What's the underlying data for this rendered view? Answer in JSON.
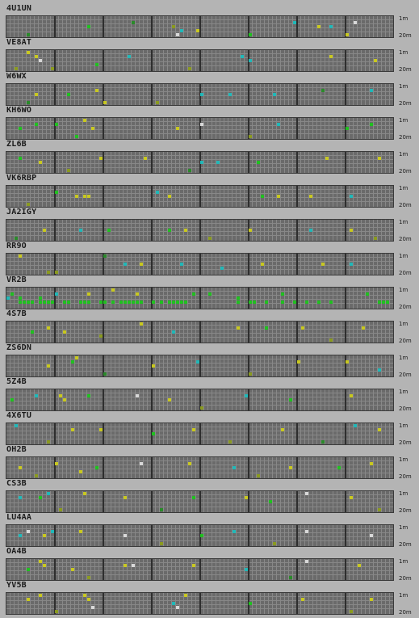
{
  "band_labels": {
    "top": "1m",
    "bottom": "20m"
  },
  "colors": {
    "green": "#20c020",
    "yellow": "#c8c820",
    "cyan": "#20b8b8",
    "white": "#d8d8d8",
    "darkgreen": "#2a8a2a",
    "olive": "#8a9a20"
  },
  "stations": [
    {
      "callsign": "4U1UN",
      "spots": [
        [
          41,
          2,
          "olive"
        ],
        [
          60,
          4,
          "green"
        ],
        [
          80,
          2,
          "cyan"
        ],
        [
          84,
          4,
          "yellow"
        ],
        [
          86,
          1,
          "white"
        ],
        [
          43,
          3,
          "cyan"
        ],
        [
          77,
          2,
          "yellow"
        ],
        [
          5,
          4,
          "darkgreen"
        ],
        [
          20,
          2,
          "green"
        ],
        [
          31,
          1,
          "darkgreen"
        ],
        [
          42,
          4,
          "white"
        ],
        [
          47,
          3,
          "yellow"
        ],
        [
          71,
          1,
          "cyan"
        ]
      ]
    },
    {
      "callsign": "VE8AT",
      "spots": [
        [
          5,
          0,
          "yellow"
        ],
        [
          7,
          1,
          "yellow"
        ],
        [
          30,
          1,
          "cyan"
        ],
        [
          58,
          1,
          "cyan"
        ],
        [
          60,
          2,
          "cyan"
        ],
        [
          80,
          1,
          "yellow"
        ],
        [
          91,
          2,
          "yellow"
        ],
        [
          2,
          4,
          "olive"
        ],
        [
          11,
          4,
          "olive"
        ],
        [
          22,
          3,
          "green"
        ],
        [
          8,
          2,
          "white"
        ],
        [
          45,
          4,
          "olive"
        ]
      ]
    },
    {
      "callsign": "W6WX",
      "spots": [
        [
          7,
          2,
          "yellow"
        ],
        [
          22,
          1,
          "yellow"
        ],
        [
          24,
          4,
          "yellow"
        ],
        [
          55,
          2,
          "cyan"
        ],
        [
          66,
          2,
          "cyan"
        ],
        [
          78,
          1,
          "darkgreen"
        ],
        [
          90,
          1,
          "cyan"
        ],
        [
          15,
          2,
          "green"
        ],
        [
          37,
          4,
          "olive"
        ],
        [
          48,
          2,
          "cyan"
        ],
        [
          5,
          4,
          "darkgreen"
        ]
      ]
    },
    {
      "callsign": "KH6WO",
      "spots": [
        [
          19,
          0,
          "yellow"
        ],
        [
          7,
          1,
          "green"
        ],
        [
          12,
          1,
          "green"
        ],
        [
          48,
          1,
          "white"
        ],
        [
          67,
          1,
          "cyan"
        ],
        [
          90,
          1,
          "green"
        ],
        [
          42,
          2,
          "yellow"
        ],
        [
          17,
          4,
          "green"
        ],
        [
          3,
          2,
          "green"
        ],
        [
          21,
          2,
          "yellow"
        ],
        [
          60,
          4,
          "olive"
        ],
        [
          84,
          2,
          "green"
        ]
      ]
    },
    {
      "callsign": "ZL6B",
      "spots": [
        [
          3,
          1,
          "green"
        ],
        [
          23,
          1,
          "yellow"
        ],
        [
          48,
          2,
          "cyan"
        ],
        [
          52,
          2,
          "cyan"
        ],
        [
          62,
          2,
          "green"
        ],
        [
          79,
          1,
          "yellow"
        ],
        [
          92,
          1,
          "yellow"
        ],
        [
          45,
          4,
          "darkgreen"
        ],
        [
          8,
          2,
          "yellow"
        ],
        [
          34,
          1,
          "yellow"
        ],
        [
          15,
          4,
          "olive"
        ]
      ]
    },
    {
      "callsign": "VK6RBP",
      "spots": [
        [
          17,
          2,
          "yellow"
        ],
        [
          19,
          2,
          "yellow"
        ],
        [
          20,
          2,
          "yellow"
        ],
        [
          40,
          2,
          "yellow"
        ],
        [
          63,
          2,
          "green"
        ],
        [
          75,
          2,
          "yellow"
        ],
        [
          85,
          2,
          "cyan"
        ],
        [
          5,
          4,
          "olive"
        ],
        [
          37,
          1,
          "cyan"
        ],
        [
          12,
          1,
          "green"
        ],
        [
          67,
          2,
          "yellow"
        ]
      ]
    },
    {
      "callsign": "JA2IGY",
      "spots": [
        [
          9,
          2,
          "yellow"
        ],
        [
          18,
          2,
          "cyan"
        ],
        [
          40,
          2,
          "green"
        ],
        [
          44,
          2,
          "yellow"
        ],
        [
          75,
          2,
          "cyan"
        ],
        [
          85,
          2,
          "yellow"
        ],
        [
          50,
          4,
          "olive"
        ],
        [
          25,
          2,
          "green"
        ],
        [
          2,
          4,
          "darkgreen"
        ],
        [
          60,
          2,
          "yellow"
        ],
        [
          91,
          4,
          "olive"
        ]
      ]
    },
    {
      "callsign": "RR9O",
      "spots": [
        [
          3,
          0,
          "yellow"
        ],
        [
          33,
          2,
          "yellow"
        ],
        [
          29,
          2,
          "cyan"
        ],
        [
          43,
          2,
          "cyan"
        ],
        [
          78,
          2,
          "yellow"
        ],
        [
          85,
          2,
          "cyan"
        ],
        [
          10,
          4,
          "olive"
        ],
        [
          12,
          4,
          "olive"
        ],
        [
          53,
          3,
          "cyan"
        ],
        [
          63,
          2,
          "yellow"
        ],
        [
          24,
          0,
          "darkgreen"
        ]
      ]
    },
    {
      "callsign": "VR2B",
      "spots": [
        [
          3,
          3,
          "green"
        ],
        [
          4,
          3,
          "green"
        ],
        [
          5,
          3,
          "green"
        ],
        [
          6,
          3,
          "green"
        ],
        [
          8,
          3,
          "green"
        ],
        [
          9,
          3,
          "green"
        ],
        [
          10,
          3,
          "green"
        ],
        [
          11,
          3,
          "green"
        ],
        [
          14,
          3,
          "green"
        ],
        [
          15,
          3,
          "green"
        ],
        [
          18,
          3,
          "green"
        ],
        [
          19,
          3,
          "green"
        ],
        [
          20,
          3,
          "green"
        ],
        [
          23,
          3,
          "green"
        ],
        [
          24,
          3,
          "green"
        ],
        [
          26,
          3,
          "green"
        ],
        [
          28,
          3,
          "green"
        ],
        [
          29,
          3,
          "green"
        ],
        [
          30,
          3,
          "green"
        ],
        [
          31,
          3,
          "green"
        ],
        [
          32,
          3,
          "green"
        ],
        [
          33,
          3,
          "green"
        ],
        [
          36,
          3,
          "green"
        ],
        [
          38,
          3,
          "green"
        ],
        [
          40,
          3,
          "green"
        ],
        [
          41,
          3,
          "green"
        ],
        [
          42,
          3,
          "green"
        ],
        [
          43,
          3,
          "green"
        ],
        [
          44,
          3,
          "green"
        ],
        [
          57,
          3,
          "green"
        ],
        [
          60,
          3,
          "green"
        ],
        [
          61,
          3,
          "green"
        ],
        [
          64,
          3,
          "green"
        ],
        [
          68,
          3,
          "green"
        ],
        [
          71,
          3,
          "green"
        ],
        [
          74,
          3,
          "green"
        ],
        [
          77,
          3,
          "green"
        ],
        [
          80,
          3,
          "green"
        ],
        [
          92,
          3,
          "green"
        ],
        [
          93,
          3,
          "green"
        ],
        [
          94,
          3,
          "green"
        ],
        [
          20,
          1,
          "yellow"
        ],
        [
          0,
          2,
          "cyan"
        ],
        [
          1,
          1,
          "green"
        ],
        [
          3,
          2,
          "green"
        ],
        [
          8,
          2,
          "green"
        ],
        [
          12,
          1,
          "cyan"
        ],
        [
          26,
          0,
          "yellow"
        ],
        [
          32,
          1,
          "yellow"
        ],
        [
          46,
          1,
          "green"
        ],
        [
          50,
          1,
          "green"
        ],
        [
          57,
          2,
          "green"
        ],
        [
          68,
          1,
          "green"
        ],
        [
          89,
          1,
          "green"
        ]
      ]
    },
    {
      "callsign": "4S7B",
      "spots": [
        [
          10,
          1,
          "yellow"
        ],
        [
          14,
          2,
          "yellow"
        ],
        [
          33,
          0,
          "yellow"
        ],
        [
          41,
          2,
          "cyan"
        ],
        [
          57,
          1,
          "yellow"
        ],
        [
          73,
          1,
          "yellow"
        ],
        [
          88,
          1,
          "yellow"
        ],
        [
          6,
          2,
          "green"
        ],
        [
          23,
          3,
          "olive"
        ],
        [
          64,
          1,
          "green"
        ],
        [
          80,
          4,
          "olive"
        ]
      ]
    },
    {
      "callsign": "ZS6DN",
      "spots": [
        [
          17,
          0,
          "yellow"
        ],
        [
          16,
          1,
          "green"
        ],
        [
          36,
          2,
          "yellow"
        ],
        [
          47,
          1,
          "cyan"
        ],
        [
          72,
          1,
          "yellow"
        ],
        [
          84,
          1,
          "yellow"
        ],
        [
          10,
          2,
          "yellow"
        ],
        [
          24,
          4,
          "darkgreen"
        ],
        [
          60,
          4,
          "olive"
        ],
        [
          92,
          3,
          "cyan"
        ]
      ]
    },
    {
      "callsign": "5Z4B",
      "spots": [
        [
          7,
          1,
          "cyan"
        ],
        [
          13,
          1,
          "yellow"
        ],
        [
          14,
          2,
          "yellow"
        ],
        [
          32,
          1,
          "white"
        ],
        [
          40,
          2,
          "yellow"
        ],
        [
          59,
          1,
          "cyan"
        ],
        [
          85,
          1,
          "yellow"
        ],
        [
          1,
          2,
          "green"
        ],
        [
          20,
          1,
          "green"
        ],
        [
          48,
          4,
          "olive"
        ],
        [
          70,
          2,
          "green"
        ]
      ]
    },
    {
      "callsign": "4X6TU",
      "spots": [
        [
          2,
          0,
          "cyan"
        ],
        [
          16,
          1,
          "yellow"
        ],
        [
          23,
          1,
          "yellow"
        ],
        [
          46,
          1,
          "yellow"
        ],
        [
          68,
          1,
          "yellow"
        ],
        [
          86,
          0,
          "cyan"
        ],
        [
          92,
          1,
          "yellow"
        ],
        [
          10,
          4,
          "olive"
        ],
        [
          36,
          2,
          "green"
        ],
        [
          55,
          4,
          "olive"
        ],
        [
          78,
          4,
          "darkgreen"
        ]
      ]
    },
    {
      "callsign": "OH2B",
      "spots": [
        [
          3,
          2,
          "yellow"
        ],
        [
          12,
          1,
          "yellow"
        ],
        [
          18,
          3,
          "yellow"
        ],
        [
          33,
          1,
          "white"
        ],
        [
          45,
          1,
          "yellow"
        ],
        [
          56,
          2,
          "cyan"
        ],
        [
          70,
          2,
          "yellow"
        ],
        [
          90,
          1,
          "yellow"
        ],
        [
          22,
          2,
          "green"
        ],
        [
          7,
          4,
          "olive"
        ],
        [
          62,
          4,
          "olive"
        ],
        [
          82,
          2,
          "green"
        ]
      ]
    },
    {
      "callsign": "CS3B",
      "spots": [
        [
          3,
          1,
          "cyan"
        ],
        [
          8,
          1,
          "green"
        ],
        [
          19,
          0,
          "yellow"
        ],
        [
          29,
          1,
          "yellow"
        ],
        [
          46,
          1,
          "green"
        ],
        [
          59,
          1,
          "yellow"
        ],
        [
          74,
          0,
          "white"
        ],
        [
          85,
          1,
          "yellow"
        ],
        [
          10,
          0,
          "cyan"
        ],
        [
          13,
          4,
          "olive"
        ],
        [
          38,
          4,
          "darkgreen"
        ],
        [
          65,
          2,
          "green"
        ],
        [
          92,
          4,
          "olive"
        ]
      ]
    },
    {
      "callsign": "LU4AA",
      "spots": [
        [
          3,
          2,
          "cyan"
        ],
        [
          9,
          2,
          "yellow"
        ],
        [
          11,
          1,
          "cyan"
        ],
        [
          18,
          1,
          "yellow"
        ],
        [
          29,
          2,
          "white"
        ],
        [
          56,
          1,
          "cyan"
        ],
        [
          74,
          1,
          "white"
        ],
        [
          90,
          2,
          "white"
        ],
        [
          5,
          1,
          "white"
        ],
        [
          38,
          4,
          "olive"
        ],
        [
          48,
          2,
          "green"
        ],
        [
          66,
          4,
          "olive"
        ]
      ]
    },
    {
      "callsign": "OA4B",
      "spots": [
        [
          8,
          0,
          "yellow"
        ],
        [
          9,
          1,
          "yellow"
        ],
        [
          16,
          2,
          "yellow"
        ],
        [
          29,
          1,
          "yellow"
        ],
        [
          31,
          1,
          "white"
        ],
        [
          46,
          1,
          "yellow"
        ],
        [
          74,
          0,
          "white"
        ],
        [
          87,
          1,
          "yellow"
        ],
        [
          5,
          2,
          "green"
        ],
        [
          20,
          4,
          "olive"
        ],
        [
          59,
          2,
          "cyan"
        ],
        [
          70,
          4,
          "darkgreen"
        ]
      ]
    },
    {
      "callsign": "YV5B",
      "spots": [
        [
          5,
          1,
          "yellow"
        ],
        [
          8,
          0,
          "yellow"
        ],
        [
          19,
          0,
          "yellow"
        ],
        [
          20,
          1,
          "yellow"
        ],
        [
          21,
          3,
          "white"
        ],
        [
          41,
          2,
          "cyan"
        ],
        [
          42,
          3,
          "white"
        ],
        [
          73,
          1,
          "yellow"
        ],
        [
          90,
          1,
          "yellow"
        ],
        [
          12,
          4,
          "olive"
        ],
        [
          44,
          0,
          "yellow"
        ],
        [
          60,
          2,
          "green"
        ],
        [
          85,
          4,
          "olive"
        ]
      ]
    }
  ]
}
